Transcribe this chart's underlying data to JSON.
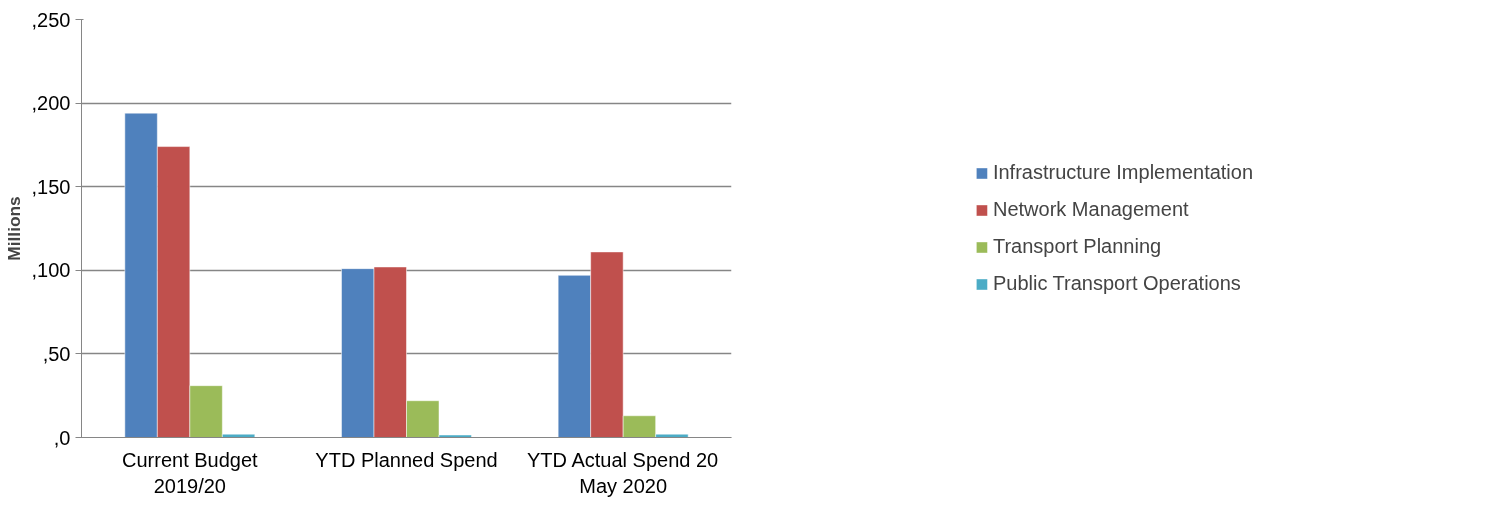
{
  "chart_data": {
    "type": "bar",
    "ylabel": "Millions",
    "categories": [
      "Current Budget 2019/20",
      "YTD Planned Spend",
      "YTD Actual Spend 20 May 2020"
    ],
    "series": [
      {
        "name": "Infrastructure Implementation",
        "color": "#4f81bd",
        "values": [
          194,
          101,
          97
        ]
      },
      {
        "name": "Network Management",
        "color": "#c0504d",
        "values": [
          174,
          102,
          111
        ]
      },
      {
        "name": "Transport Planning",
        "color": "#9bbb59",
        "values": [
          31,
          22,
          13
        ]
      },
      {
        "name": "Public Transport Operations",
        "color": "#4bacc6",
        "values": [
          2,
          1.5,
          2
        ]
      }
    ],
    "ylim": [
      0,
      250
    ],
    "yticks": [
      {
        "value": 0,
        "label": ",0"
      },
      {
        "value": 50,
        "label": ",50"
      },
      {
        "value": 100,
        "label": ",100"
      },
      {
        "value": 150,
        "label": ",150"
      },
      {
        "value": 200,
        "label": ",200"
      },
      {
        "value": 250,
        "label": ",250"
      }
    ],
    "grid": "y",
    "legend": "right"
  }
}
